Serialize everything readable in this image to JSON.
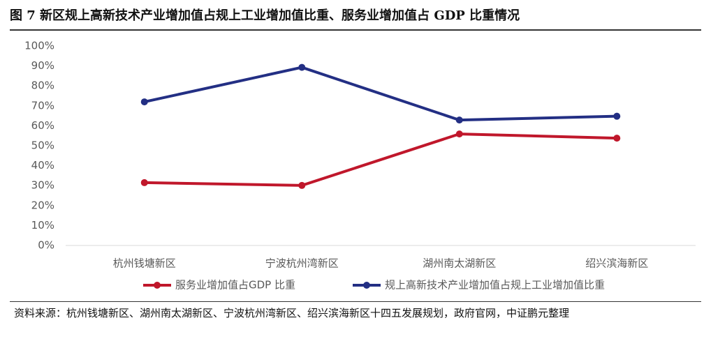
{
  "header": {
    "title": "图 7 新区规上高新技术产业增加值占规上工业增加值比重、服务业增加值占 GDP 比重情况"
  },
  "chart_data": {
    "type": "line",
    "categories": [
      "杭州钱塘新区",
      "宁波杭州湾新区",
      "湖州南太湖新区",
      "绍兴滨海新区"
    ],
    "series": [
      {
        "name": "服务业增加值占GDP 比重",
        "color": "#c0172b",
        "values": [
          31.5,
          30.1,
          55.9,
          53.8
        ]
      },
      {
        "name": "规上高新技术产业增加值占规上工业增加值比重",
        "color": "#232f84",
        "values": [
          72.0,
          89.3,
          62.9,
          64.8
        ]
      }
    ],
    "ylim": [
      0,
      100
    ],
    "yticks": [
      {
        "value": 0,
        "label": "0%"
      },
      {
        "value": 10,
        "label": "10%"
      },
      {
        "value": 20,
        "label": "20%"
      },
      {
        "value": 30,
        "label": "30%"
      },
      {
        "value": 40,
        "label": "40%"
      },
      {
        "value": 50,
        "label": "50%"
      },
      {
        "value": 60,
        "label": "60%"
      },
      {
        "value": 70,
        "label": "70%"
      },
      {
        "value": 80,
        "label": "80%"
      },
      {
        "value": 90,
        "label": "90%"
      },
      {
        "value": 100,
        "label": "100%"
      }
    ],
    "grid": false,
    "legend": "bottom"
  },
  "footer": {
    "source": "资料来源：杭州钱塘新区、湖州南太湖新区、宁波杭州湾新区、绍兴滨海新区十四五发展规划，政府官网，中证鹏元整理"
  }
}
